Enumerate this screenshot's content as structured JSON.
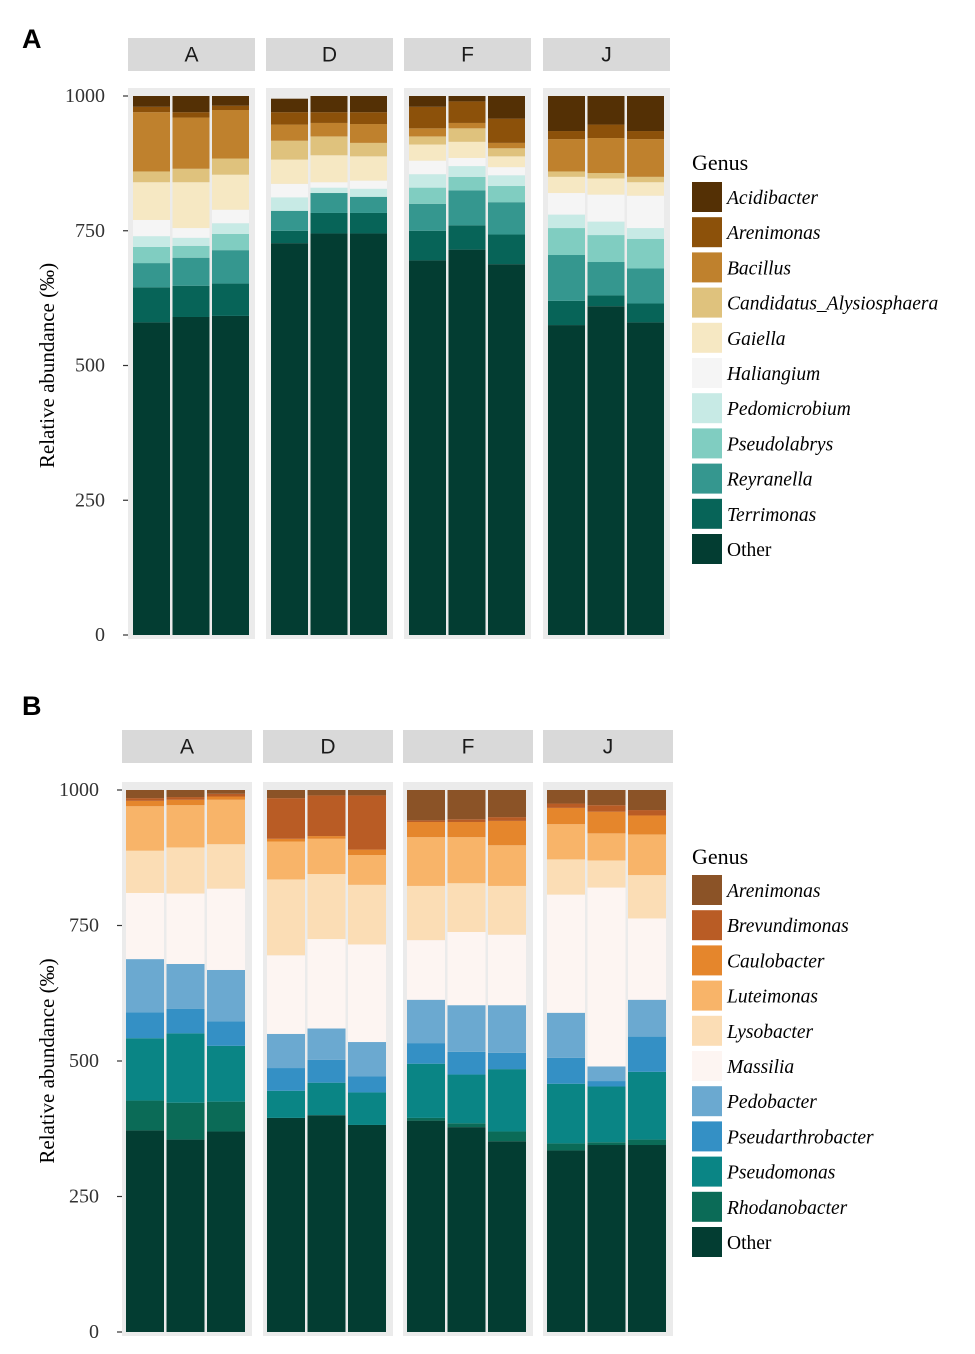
{
  "chart_data": [
    {
      "panel": "A",
      "type": "stacked-bar",
      "ylabel": "Relative abundance (‰)",
      "ylim": [
        0,
        1000
      ],
      "yticks": [
        0,
        250,
        500,
        750,
        1000
      ],
      "legend_title": "Genus",
      "legend_position": "right",
      "facets": [
        "A",
        "D",
        "F",
        "J"
      ],
      "replicates_per_facet": 3,
      "series": [
        {
          "name": "Other",
          "color": "#033D32",
          "values": [
            580,
            590,
            592,
            727,
            745,
            745,
            695,
            715,
            688,
            575,
            610,
            580
          ]
        },
        {
          "name": "Terrimonas",
          "color": "#076458",
          "values": [
            65,
            58,
            60,
            23,
            38,
            38,
            55,
            45,
            55,
            45,
            20,
            35
          ]
        },
        {
          "name": "Reyranella",
          "color": "#35978F",
          "values": [
            45,
            52,
            62,
            37,
            37,
            30,
            50,
            65,
            60,
            85,
            62,
            65
          ]
        },
        {
          "name": "Pseudolabrys",
          "color": "#80CDC1",
          "values": [
            30,
            22,
            30,
            0,
            0,
            0,
            30,
            25,
            30,
            50,
            50,
            55
          ]
        },
        {
          "name": "Pedomicrobium",
          "color": "#C7EAE5",
          "values": [
            20,
            15,
            20,
            25,
            10,
            15,
            25,
            20,
            20,
            25,
            25,
            20
          ]
        },
        {
          "name": "Haliangium",
          "color": "#F5F5F5",
          "values": [
            30,
            18,
            25,
            25,
            10,
            15,
            25,
            15,
            15,
            40,
            50,
            60
          ]
        },
        {
          "name": "Gaiella",
          "color": "#F6E8C3",
          "values": [
            70,
            85,
            65,
            45,
            50,
            45,
            30,
            30,
            20,
            30,
            30,
            25
          ]
        },
        {
          "name": "Candidatus_Alysiosphaera",
          "color": "#DFC27D",
          "values": [
            20,
            25,
            30,
            35,
            35,
            25,
            15,
            25,
            15,
            10,
            10,
            10
          ]
        },
        {
          "name": "Bacillus",
          "color": "#BF812D",
          "values": [
            110,
            95,
            90,
            30,
            25,
            35,
            15,
            10,
            10,
            60,
            65,
            70
          ]
        },
        {
          "name": "Arenimonas",
          "color": "#8C510A",
          "values": [
            10,
            10,
            8,
            23,
            20,
            22,
            40,
            40,
            45,
            15,
            25,
            15
          ]
        },
        {
          "name": "Acidibacter",
          "color": "#543005",
          "values": [
            20,
            30,
            18,
            25,
            30,
            30,
            20,
            10,
            42,
            65,
            53,
            65
          ]
        }
      ]
    },
    {
      "panel": "B",
      "type": "stacked-bar",
      "ylabel": "Relative abundance (‰)",
      "ylim": [
        0,
        1000
      ],
      "yticks": [
        0,
        250,
        500,
        750,
        1000
      ],
      "legend_title": "Genus",
      "legend_position": "right",
      "facets": [
        "A",
        "D",
        "F",
        "J"
      ],
      "replicates_per_facet": 3,
      "series": [
        {
          "name": "Other",
          "color": "#033D32",
          "values": [
            372,
            355,
            370,
            395,
            400,
            382,
            390,
            378,
            352,
            335,
            345,
            345
          ]
        },
        {
          "name": "Rhodanobacter",
          "color": "#0B6B57",
          "values": [
            55,
            68,
            55,
            0,
            0,
            0,
            5,
            7,
            18,
            13,
            5,
            10
          ]
        },
        {
          "name": "Pseudomonas",
          "color": "#0A8585",
          "values": [
            115,
            128,
            103,
            50,
            60,
            60,
            100,
            90,
            115,
            110,
            103,
            125
          ]
        },
        {
          "name": "Pseudarthrobacter",
          "color": "#3490C5",
          "values": [
            48,
            45,
            45,
            42,
            42,
            30,
            38,
            42,
            30,
            48,
            10,
            65
          ]
        },
        {
          "name": "Pedobacter",
          "color": "#6BA9D0",
          "values": [
            98,
            83,
            95,
            63,
            58,
            63,
            80,
            86,
            88,
            83,
            27,
            68
          ]
        },
        {
          "name": "Massilia",
          "color": "#FDF5F2",
          "values": [
            122,
            130,
            150,
            145,
            165,
            180,
            110,
            135,
            130,
            218,
            330,
            150
          ]
        },
        {
          "name": "Lysobacter",
          "color": "#FBDDB5",
          "values": [
            78,
            85,
            82,
            140,
            120,
            110,
            100,
            90,
            90,
            65,
            50,
            80
          ]
        },
        {
          "name": "Luteimonas",
          "color": "#F8B469",
          "values": [
            82,
            78,
            82,
            70,
            65,
            55,
            90,
            85,
            75,
            65,
            50,
            75
          ]
        },
        {
          "name": "Caulobacter",
          "color": "#E5862C",
          "values": [
            10,
            10,
            6,
            5,
            5,
            10,
            28,
            28,
            45,
            30,
            40,
            35
          ]
        },
        {
          "name": "Brevundimonas",
          "color": "#B95C25",
          "values": [
            5,
            5,
            5,
            75,
            75,
            100,
            3,
            5,
            7,
            8,
            12,
            10
          ]
        },
        {
          "name": "Arenimonas",
          "color": "#8B5327",
          "values": [
            15,
            13,
            7,
            15,
            10,
            10,
            56,
            54,
            50,
            25,
            28,
            37
          ]
        }
      ]
    }
  ]
}
